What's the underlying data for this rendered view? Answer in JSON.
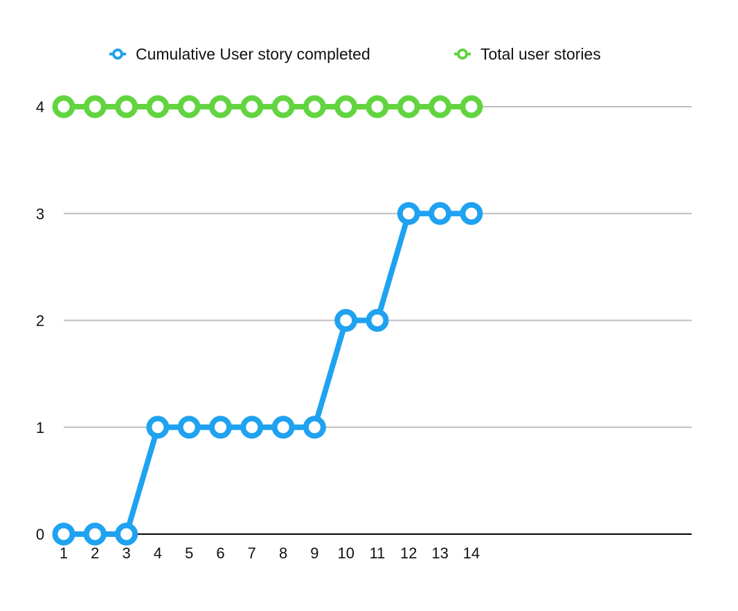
{
  "chart_data": {
    "type": "line",
    "title": "",
    "xlabel": "",
    "ylabel": "",
    "x": [
      1,
      2,
      3,
      4,
      5,
      6,
      7,
      8,
      9,
      10,
      11,
      12,
      13,
      14
    ],
    "x_axis_extent": [
      1,
      21
    ],
    "ylim": [
      0,
      4
    ],
    "yticks": [
      0,
      1,
      2,
      3,
      4
    ],
    "grid": true,
    "legend_position": "top",
    "series": [
      {
        "name": "Cumulative User story completed",
        "color": "#1fa2f0",
        "values": [
          0,
          0,
          0,
          1,
          1,
          1,
          1,
          1,
          1,
          2,
          2,
          3,
          3,
          3
        ]
      },
      {
        "name": "Total user stories",
        "color": "#62d440",
        "values": [
          4,
          4,
          4,
          4,
          4,
          4,
          4,
          4,
          4,
          4,
          4,
          4,
          4,
          4
        ]
      }
    ]
  }
}
